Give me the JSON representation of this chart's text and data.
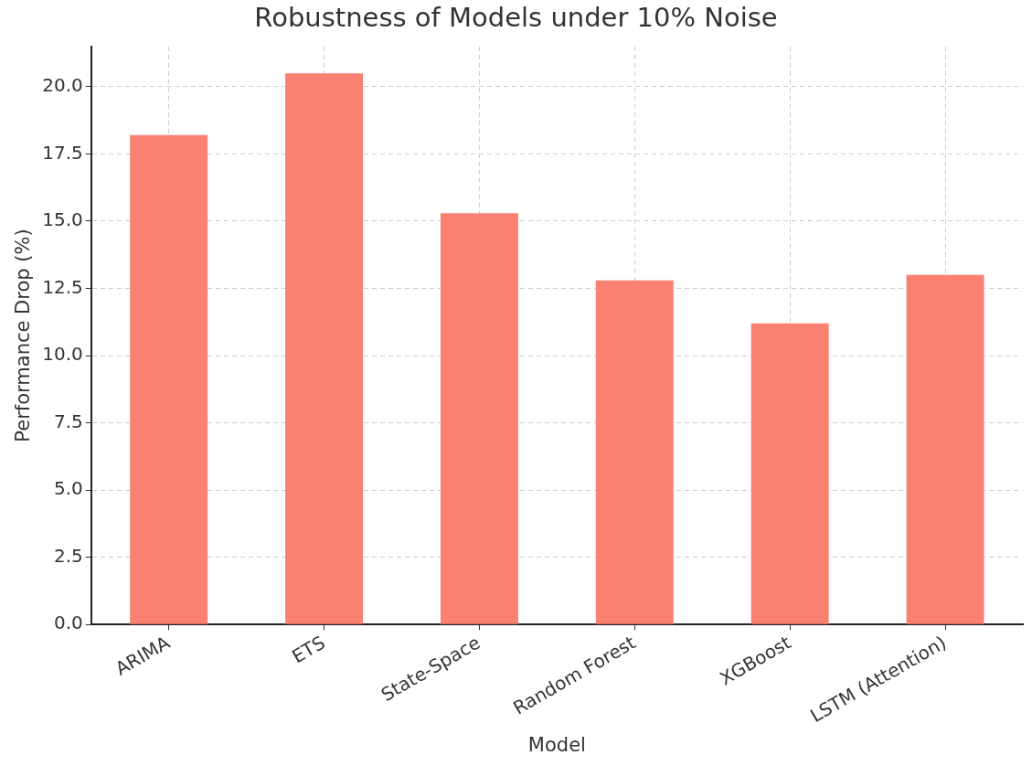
{
  "chart_data": {
    "type": "bar",
    "title": "Robustness of Models under 10% Noise",
    "xlabel": "Model",
    "ylabel": "Performance Drop (%)",
    "categories": [
      "ARIMA",
      "ETS",
      "State-Space",
      "Random Forest",
      "XGBoost",
      "LSTM (Attention)"
    ],
    "values": [
      18.2,
      20.5,
      15.3,
      12.8,
      11.2,
      13.0
    ],
    "color": "#fa8072",
    "ylim": [
      0,
      21.5
    ],
    "yticks": [
      {
        "value": 0,
        "label": "0.0"
      },
      {
        "value": 2.5,
        "label": "2.5"
      },
      {
        "value": 5,
        "label": "5.0"
      },
      {
        "value": 7.5,
        "label": "7.5"
      },
      {
        "value": 10,
        "label": "10.0"
      },
      {
        "value": 12.5,
        "label": "12.5"
      },
      {
        "value": 15,
        "label": "15.0"
      },
      {
        "value": 17.5,
        "label": "17.5"
      },
      {
        "value": 20,
        "label": "20.0"
      }
    ],
    "grid": true,
    "line_style": "dashed"
  }
}
